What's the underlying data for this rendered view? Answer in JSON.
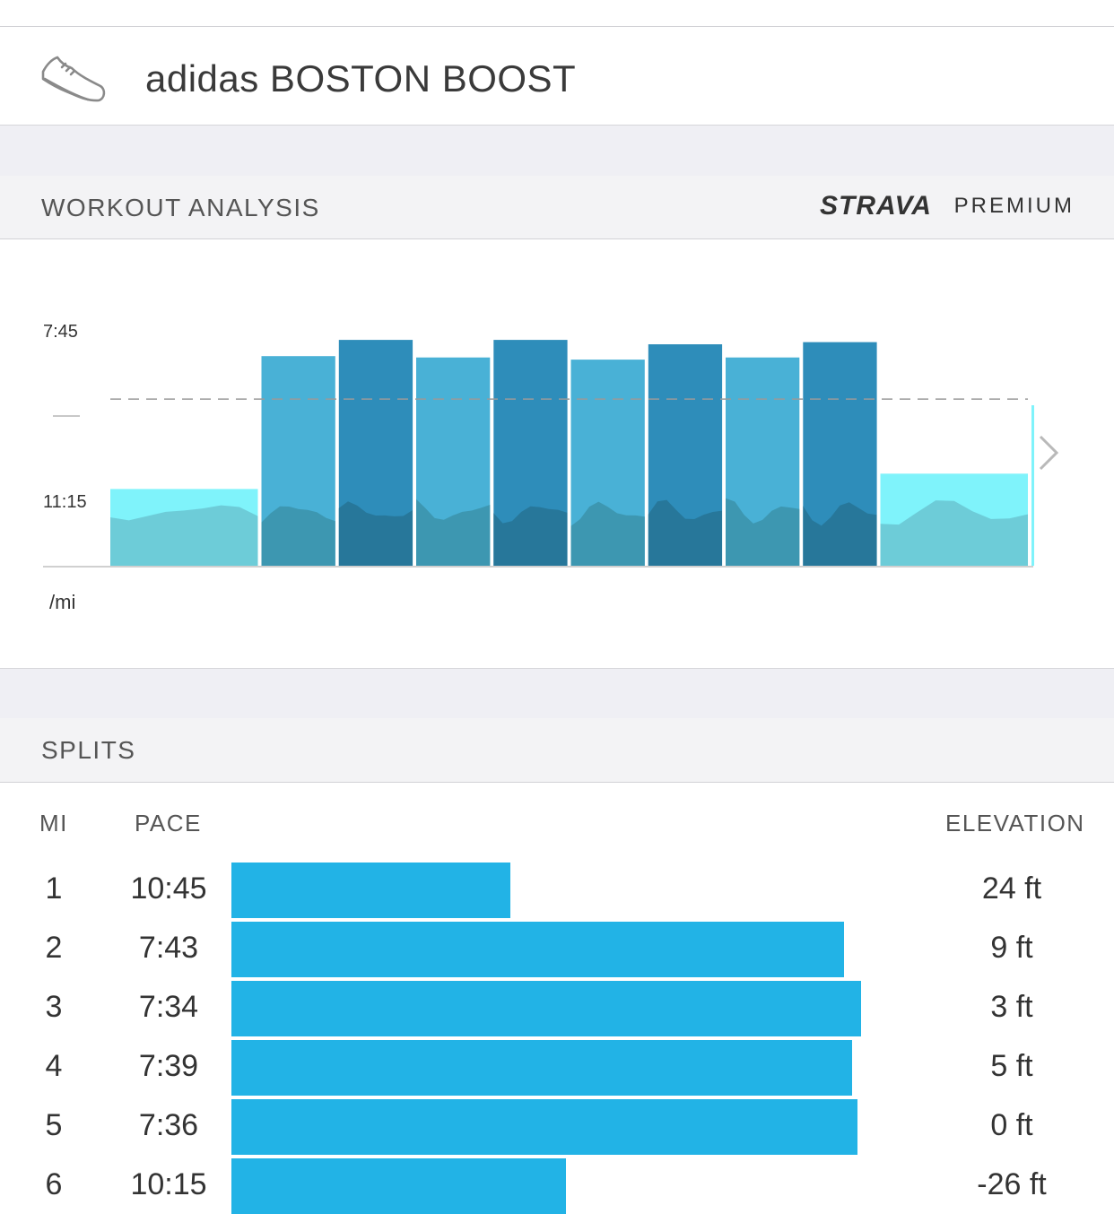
{
  "gear": {
    "name": "adidas BOSTON BOOST",
    "icon": "shoe-icon"
  },
  "analysis": {
    "title": "WORKOUT ANALYSIS",
    "brand": {
      "logo_text": "STRAVA",
      "tier": "PREMIUM",
      "color": "#333333"
    },
    "y_tick_top": "7:45",
    "y_tick_bottom": "11:15",
    "unit": "/mi",
    "next_icon": "chevron-right-icon"
  },
  "chart_data": {
    "type": "bar",
    "categories": [
      "1",
      "2",
      "3",
      "4",
      "5",
      "6"
    ],
    "values": [
      10.75,
      7.717,
      7.567,
      7.65,
      7.6,
      10.25
    ],
    "segments": [
      {
        "mile": 1,
        "pace_min": 10.75,
        "shade": "#7ff3fb",
        "elev_shade": "#6dccd8"
      },
      {
        "mile": 2,
        "pace_min": 7.72,
        "shade": "#49b1d6",
        "elev_shade": "#3d97b1"
      },
      {
        "mile": 2,
        "pace_min": 7.35,
        "shade": "#2e8dba",
        "elev_shade": "#27779a"
      },
      {
        "mile": 3,
        "pace_min": 7.75,
        "shade": "#49b1d6",
        "elev_shade": "#3d97b1"
      },
      {
        "mile": 3,
        "pace_min": 7.35,
        "shade": "#2e8dba",
        "elev_shade": "#27779a"
      },
      {
        "mile": 4,
        "pace_min": 7.8,
        "shade": "#49b1d6",
        "elev_shade": "#3d97b1"
      },
      {
        "mile": 4,
        "pace_min": 7.45,
        "shade": "#2e8dba",
        "elev_shade": "#27779a"
      },
      {
        "mile": 5,
        "pace_min": 7.75,
        "shade": "#49b1d6",
        "elev_shade": "#3d97b1"
      },
      {
        "mile": 5,
        "pace_min": 7.4,
        "shade": "#2e8dba",
        "elev_shade": "#27779a"
      },
      {
        "mile": 6,
        "pace_min": 10.4,
        "shade": "#7ff3fb",
        "elev_shade": "#6dccd8"
      }
    ],
    "average_pace_min": 8.7,
    "ylim": [
      12.5,
      7.0
    ],
    "y_ticks": [
      "7:45",
      "11:15"
    ],
    "ylabel": "/mi",
    "grid": false
  },
  "splits": {
    "title": "SPLITS",
    "headers": {
      "mi": "MI",
      "pace": "PACE",
      "elevation": "ELEVATION"
    },
    "bar_color": "#22b3e6",
    "rows": [
      {
        "mi": "1",
        "pace": "10:45",
        "pace_min": 10.75,
        "elevation": "24 ft"
      },
      {
        "mi": "2",
        "pace": "7:43",
        "pace_min": 7.717,
        "elevation": "9 ft"
      },
      {
        "mi": "3",
        "pace": "7:34",
        "pace_min": 7.567,
        "elevation": "3 ft"
      },
      {
        "mi": "4",
        "pace": "7:39",
        "pace_min": 7.65,
        "elevation": "5 ft"
      },
      {
        "mi": "5",
        "pace": "7:36",
        "pace_min": 7.6,
        "elevation": "0 ft"
      },
      {
        "mi": "6",
        "pace": "10:15",
        "pace_min": 10.25,
        "elevation": "-26 ft"
      }
    ]
  }
}
